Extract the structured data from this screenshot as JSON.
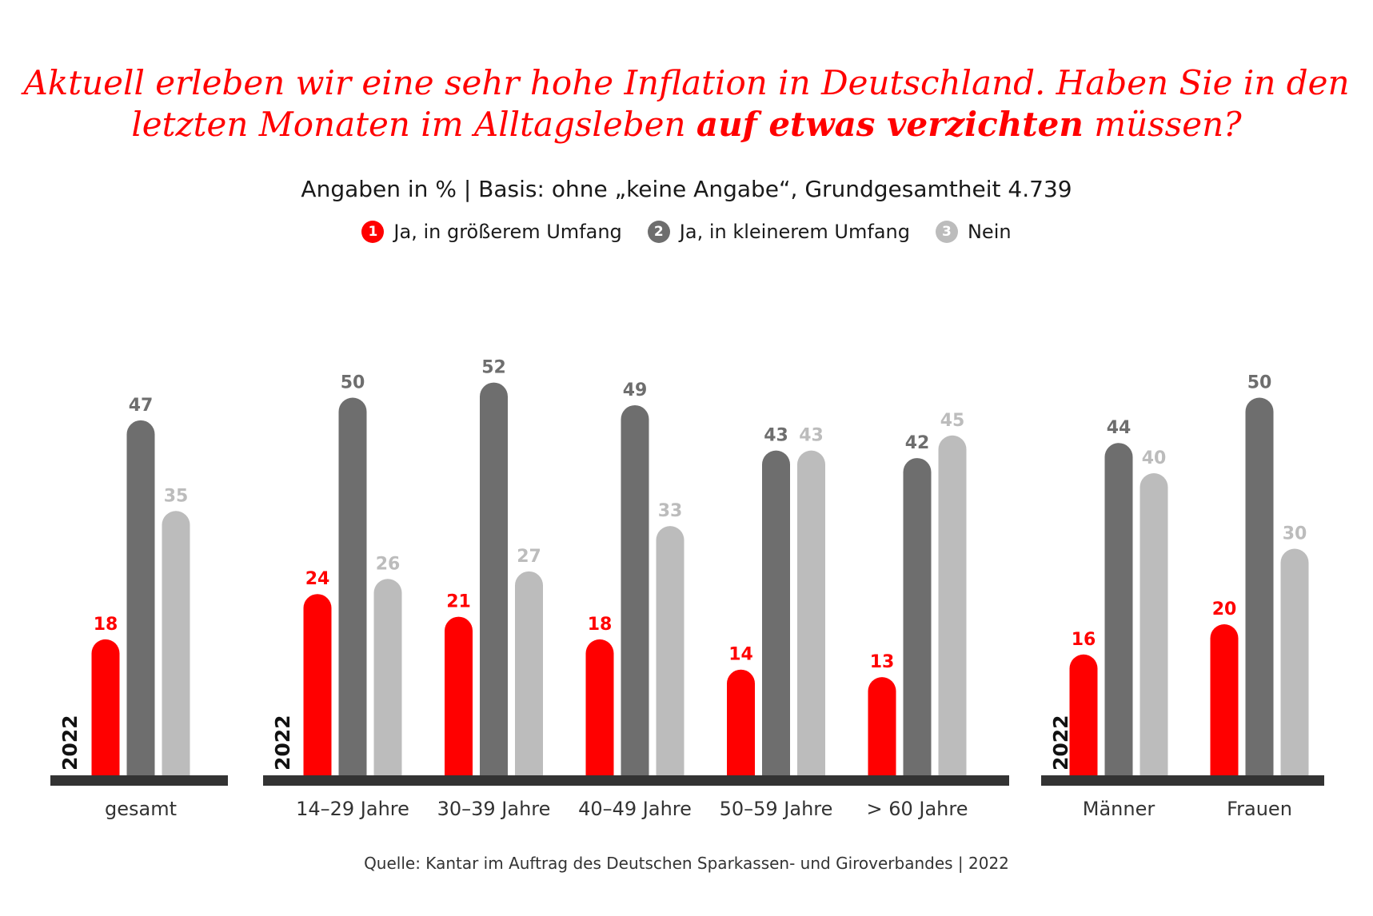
{
  "title": {
    "line1": "Aktuell erleben wir eine sehr hohe Inflation in Deutschland. Haben Sie in den",
    "line2_pre": "letzten Monaten im Alltagsleben ",
    "line2_bold": "auf etwas verzichten",
    "line2_post": " müssen?"
  },
  "subtitle": "Angaben in % | Basis: ohne „keine Angabe“, Grundgesamtheit 4.739",
  "source": "Quelle: Kantar im Auftrag des Deutschen Sparkassen- und Giroverbandes | 2022",
  "legend": [
    {
      "num": "1",
      "label": "Ja, in größerem Umfang",
      "color": "#ff0000"
    },
    {
      "num": "2",
      "label": "Ja, in kleinerem Umfang",
      "color": "#6e6e6e"
    },
    {
      "num": "3",
      "label": "Nein",
      "color": "#bcbcbc"
    }
  ],
  "chart_data": {
    "type": "bar",
    "year_label": "2022",
    "colors": [
      "#ff0000",
      "#6e6e6e",
      "#bcbcbc"
    ],
    "label_colors": [
      "#ff0000",
      "#6e6e6e",
      "#bcbcbc"
    ],
    "series": [
      {
        "name": "Ja, in größerem Umfang"
      },
      {
        "name": "Ja, in kleinerem Umfang"
      },
      {
        "name": "Nein"
      }
    ],
    "groups": [
      {
        "categories": [
          {
            "label": "gesamt",
            "values": [
              18,
              47,
              35
            ]
          }
        ]
      },
      {
        "categories": [
          {
            "label": "14–29 Jahre",
            "values": [
              24,
              50,
              26
            ]
          },
          {
            "label": "30–39 Jahre",
            "values": [
              21,
              52,
              27
            ]
          },
          {
            "label": "40–49 Jahre",
            "values": [
              18,
              49,
              33
            ]
          },
          {
            "label": "50–59 Jahre",
            "values": [
              14,
              43,
              43
            ]
          },
          {
            "label": "> 60 Jahre",
            "values": [
              13,
              42,
              45
            ]
          }
        ]
      },
      {
        "categories": [
          {
            "label": "Männer",
            "values": [
              16,
              44,
              40
            ]
          },
          {
            "label": "Frauen",
            "values": [
              20,
              50,
              30
            ]
          }
        ]
      }
    ]
  }
}
